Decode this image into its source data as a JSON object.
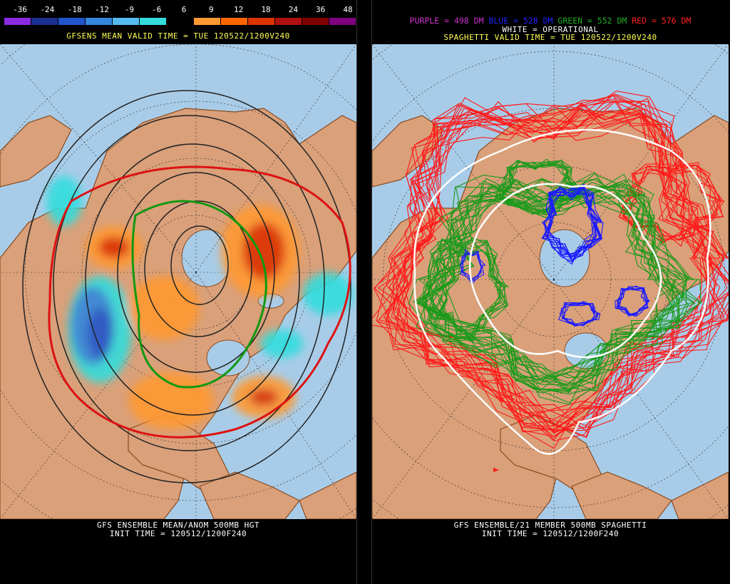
{
  "left_panel": {
    "scale_labels": [
      "-36",
      "-24",
      "-18",
      "-12",
      "-9",
      "-6",
      "6",
      "9",
      "12",
      "18",
      "24",
      "36",
      "48"
    ],
    "scale_colors": [
      "#8a2be2",
      "#1a2f8f",
      "#2255cc",
      "#3388dd",
      "#55bbee",
      "#33dddd",
      "#000000",
      "#ff9933",
      "#ff6600",
      "#dd3300",
      "#b01010",
      "#800000",
      "#800080"
    ],
    "top_title": "GFSENS MEAN VALID TIME = TUE 120522/1200V240",
    "bottom_title_1": "GFS ENSEMBLE MEAN/ANOM 500MB HGT",
    "bottom_title_2": "INIT TIME = 120512/1200F240"
  },
  "right_panel": {
    "legend": [
      {
        "text": "PURPLE = 498 DM",
        "color": "#cc33cc"
      },
      {
        "text": "BLUE = 528 DM",
        "color": "#2222ff"
      },
      {
        "text": "GREEN = 552 DM",
        "color": "#22aa22"
      },
      {
        "text": "RED = 576 DM",
        "color": "#ff2020"
      }
    ],
    "operational_label": "WHITE = OPERATIONAL",
    "top_title": "SPAGHETTI VALID TIME = TUE 120522/1200V240",
    "bottom_title_1": "GFS ENSEMBLE/21 MEMBER 500MB SPAGHETTI",
    "bottom_title_2": "INIT TIME = 120512/1200F240"
  },
  "colors": {
    "ocean": "#a8cce8",
    "land": "#d9a07a",
    "coast": "#8b4a1c",
    "grid": "#333333"
  }
}
